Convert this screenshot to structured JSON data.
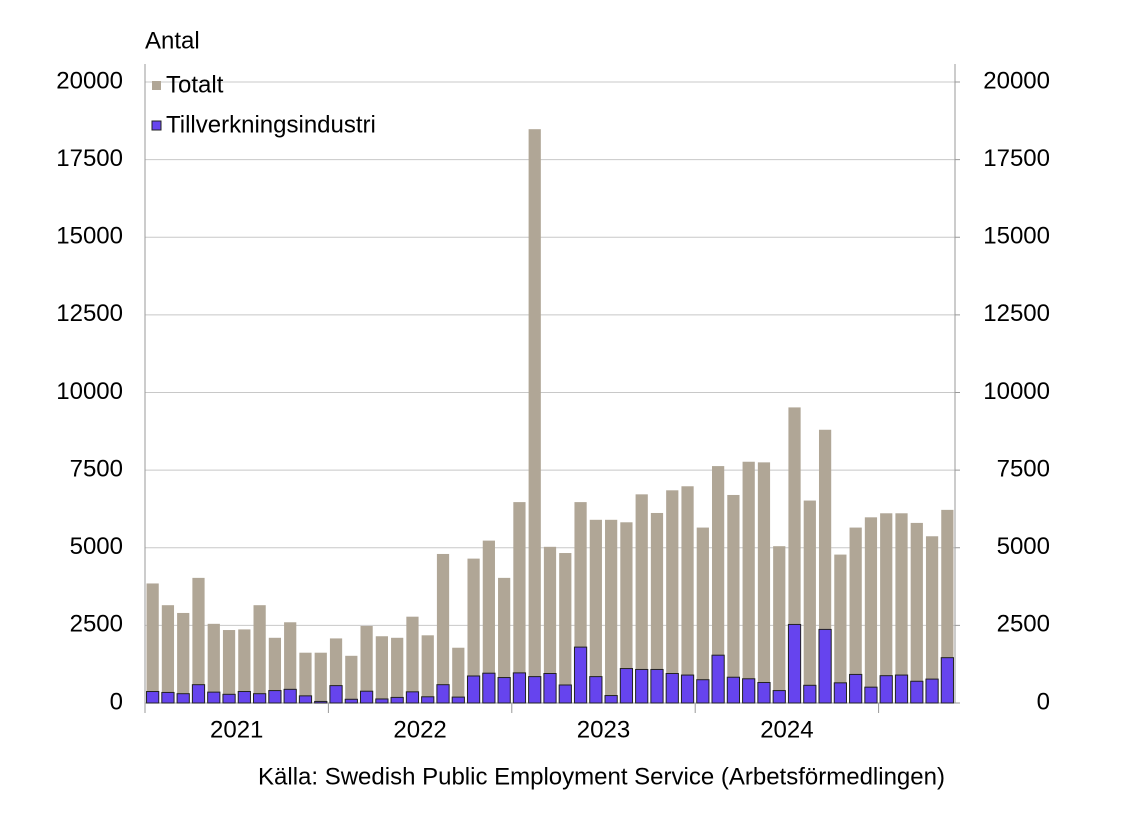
{
  "chart_data": {
    "type": "bar",
    "y_axis_label": "Antal",
    "source": "Källa: Swedish Public Employment Service (Arbetsförmedlingen)",
    "categories": [
      null,
      null,
      null,
      null,
      null,
      null,
      "2021",
      null,
      null,
      null,
      null,
      null,
      null,
      null,
      null,
      null,
      null,
      null,
      "2022",
      null,
      null,
      null,
      null,
      null,
      null,
      null,
      null,
      null,
      null,
      null,
      "2023",
      null,
      null,
      null,
      null,
      null,
      null,
      null,
      null,
      null,
      null,
      null,
      "2024",
      null,
      null,
      null,
      null,
      null,
      null,
      null,
      null,
      null,
      null
    ],
    "series": [
      {
        "name": "Totalt",
        "color": "#b0a696",
        "values": [
          3850,
          3150,
          2900,
          4030,
          2550,
          2350,
          2370,
          3150,
          2100,
          2600,
          1620,
          1620,
          2080,
          1520,
          2480,
          2150,
          2100,
          2780,
          2180,
          4800,
          1780,
          4650,
          5230,
          4030,
          6470,
          18480,
          5030,
          4830,
          6470,
          5900,
          5900,
          5820,
          6720,
          6120,
          6850,
          6980,
          5650,
          7630,
          6700,
          7770,
          7750,
          5050,
          9520,
          6520,
          8800,
          4780,
          5650,
          5980,
          6110,
          6110,
          5800,
          5370,
          6220
        ]
      },
      {
        "name": "Tillverkningsindustri",
        "color": "#6644ee",
        "values": [
          370,
          340,
          300,
          590,
          350,
          280,
          370,
          300,
          400,
          440,
          230,
          50,
          560,
          120,
          380,
          130,
          180,
          360,
          200,
          590,
          190,
          870,
          960,
          820,
          970,
          850,
          950,
          580,
          1800,
          850,
          240,
          1110,
          1080,
          1080,
          950,
          900,
          750,
          1540,
          830,
          780,
          660,
          400,
          2530,
          570,
          2370,
          650,
          920,
          510,
          880,
          900,
          700,
          770,
          1460
        ]
      }
    ],
    "ylim": [
      0,
      20000
    ],
    "yticks": [
      0,
      2500,
      5000,
      7500,
      10000,
      12500,
      15000,
      17500,
      20000
    ],
    "y2lim": [
      0,
      20000
    ],
    "y2ticks": [
      0,
      2500,
      5000,
      7500,
      10000,
      12500,
      15000,
      17500,
      20000
    ],
    "grid": true,
    "legend": "upper left"
  }
}
